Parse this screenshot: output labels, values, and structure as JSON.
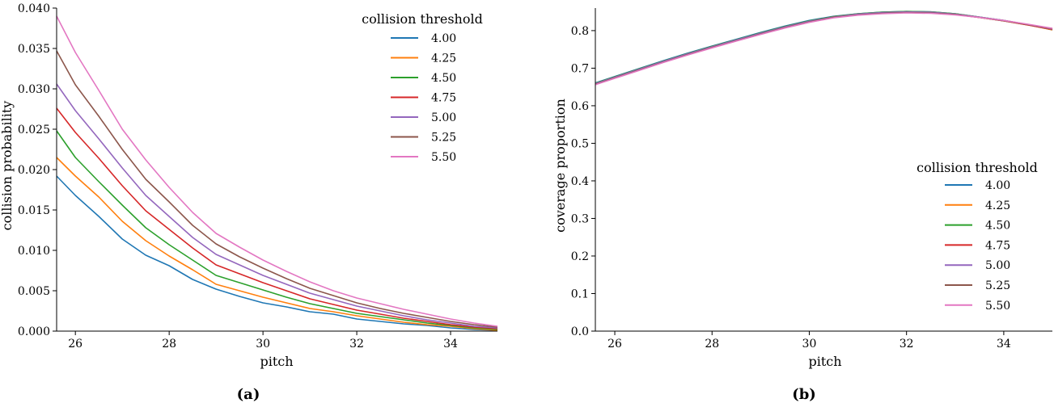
{
  "chart_data": [
    {
      "type": "line",
      "caption": "(a)",
      "xlabel": "pitch",
      "ylabel": "collision probability",
      "xlim": [
        25.6,
        35.0
      ],
      "ylim": [
        0.0,
        0.04
      ],
      "xticks": [
        "26",
        "28",
        "30",
        "32",
        "34"
      ],
      "yticks": [
        "0.000",
        "0.005",
        "0.010",
        "0.015",
        "0.020",
        "0.025",
        "0.030",
        "0.035",
        "0.040"
      ],
      "legend": {
        "title": "collision threshold",
        "position": "top-right"
      },
      "x": [
        25.6,
        26.0,
        26.5,
        27.0,
        27.5,
        28.0,
        28.5,
        29.0,
        29.5,
        30.0,
        30.5,
        31.0,
        31.5,
        32.0,
        32.5,
        33.0,
        33.5,
        34.0,
        34.5,
        35.0
      ],
      "series": [
        {
          "name": "4.00",
          "color": "#1f77b4",
          "values": [
            0.0192,
            0.0168,
            0.0142,
            0.0114,
            0.0094,
            0.0081,
            0.0064,
            0.0052,
            0.0043,
            0.0035,
            0.003,
            0.0024,
            0.0021,
            0.0015,
            0.0012,
            0.0009,
            0.0007,
            0.0004,
            0.0002,
            0.0001
          ]
        },
        {
          "name": "4.25",
          "color": "#ff7f0e",
          "values": [
            0.0215,
            0.0192,
            0.0166,
            0.0136,
            0.0112,
            0.0093,
            0.0076,
            0.0058,
            0.005,
            0.0042,
            0.0035,
            0.0028,
            0.0024,
            0.0019,
            0.0015,
            0.0011,
            0.0008,
            0.0006,
            0.0003,
            0.0001
          ]
        },
        {
          "name": "4.50",
          "color": "#2ca02c",
          "values": [
            0.0248,
            0.0215,
            0.0185,
            0.0156,
            0.0128,
            0.0107,
            0.0088,
            0.0069,
            0.006,
            0.0051,
            0.0042,
            0.0034,
            0.0028,
            0.0022,
            0.0018,
            0.0014,
            0.001,
            0.0007,
            0.0004,
            0.0002
          ]
        },
        {
          "name": "4.75",
          "color": "#d62728",
          "values": [
            0.0276,
            0.0246,
            0.0214,
            0.018,
            0.0149,
            0.0126,
            0.0103,
            0.0082,
            0.0071,
            0.006,
            0.005,
            0.004,
            0.0033,
            0.0026,
            0.0021,
            0.0016,
            0.0012,
            0.0008,
            0.0005,
            0.0003
          ]
        },
        {
          "name": "5.00",
          "color": "#9467bd",
          "values": [
            0.0306,
            0.0273,
            0.0238,
            0.0202,
            0.0168,
            0.0142,
            0.0116,
            0.0095,
            0.0082,
            0.0069,
            0.0058,
            0.0047,
            0.0039,
            0.0031,
            0.0025,
            0.0019,
            0.0014,
            0.001,
            0.0006,
            0.0004
          ]
        },
        {
          "name": "5.25",
          "color": "#8c564b",
          "values": [
            0.0347,
            0.0305,
            0.0266,
            0.0225,
            0.0188,
            0.016,
            0.0131,
            0.0108,
            0.0092,
            0.0078,
            0.0065,
            0.0053,
            0.0044,
            0.0035,
            0.0028,
            0.0022,
            0.0017,
            0.0012,
            0.0008,
            0.0005
          ]
        },
        {
          "name": "5.50",
          "color": "#e377c2",
          "values": [
            0.039,
            0.0345,
            0.0298,
            0.025,
            0.0212,
            0.0178,
            0.0147,
            0.0121,
            0.0104,
            0.0088,
            0.0074,
            0.0061,
            0.005,
            0.0041,
            0.0034,
            0.0027,
            0.0021,
            0.0015,
            0.001,
            0.0006
          ]
        }
      ]
    },
    {
      "type": "line",
      "caption": "(b)",
      "xlabel": "pitch",
      "ylabel": "coverage proportion",
      "xlim": [
        25.6,
        35.0
      ],
      "ylim": [
        0.0,
        0.86
      ],
      "xticks": [
        "26",
        "28",
        "30",
        "32",
        "34"
      ],
      "yticks": [
        "0.0",
        "0.1",
        "0.2",
        "0.3",
        "0.4",
        "0.5",
        "0.6",
        "0.7",
        "0.8"
      ],
      "legend": {
        "title": "collision threshold",
        "position": "center-right"
      },
      "x": [
        25.6,
        26.0,
        26.5,
        27.0,
        27.5,
        28.0,
        28.5,
        29.0,
        29.5,
        30.0,
        30.5,
        31.0,
        31.5,
        32.0,
        32.5,
        33.0,
        33.5,
        34.0,
        34.5,
        35.0
      ],
      "series": [
        {
          "name": "4.00",
          "color": "#1f77b4",
          "values": [
            0.661,
            0.678,
            0.699,
            0.72,
            0.74,
            0.759,
            0.777,
            0.795,
            0.812,
            0.827,
            0.838,
            0.845,
            0.849,
            0.851,
            0.85,
            0.845,
            0.836,
            0.827,
            0.816,
            0.802
          ]
        },
        {
          "name": "4.25",
          "color": "#ff7f0e",
          "values": [
            0.659,
            0.676,
            0.697,
            0.718,
            0.738,
            0.757,
            0.775,
            0.793,
            0.81,
            0.825,
            0.837,
            0.844,
            0.848,
            0.85,
            0.849,
            0.844,
            0.835,
            0.826,
            0.815,
            0.802
          ]
        },
        {
          "name": "4.50",
          "color": "#2ca02c",
          "values": [
            0.66,
            0.677,
            0.698,
            0.719,
            0.739,
            0.758,
            0.776,
            0.794,
            0.811,
            0.826,
            0.837,
            0.845,
            0.849,
            0.851,
            0.85,
            0.845,
            0.836,
            0.827,
            0.816,
            0.803
          ]
        },
        {
          "name": "4.75",
          "color": "#d62728",
          "values": [
            0.658,
            0.675,
            0.696,
            0.717,
            0.737,
            0.756,
            0.774,
            0.792,
            0.809,
            0.824,
            0.836,
            0.843,
            0.847,
            0.849,
            0.848,
            0.843,
            0.835,
            0.826,
            0.815,
            0.803
          ]
        },
        {
          "name": "5.00",
          "color": "#9467bd",
          "values": [
            0.659,
            0.676,
            0.697,
            0.718,
            0.738,
            0.757,
            0.775,
            0.793,
            0.81,
            0.825,
            0.836,
            0.844,
            0.848,
            0.85,
            0.849,
            0.844,
            0.836,
            0.827,
            0.816,
            0.804
          ]
        },
        {
          "name": "5.25",
          "color": "#8c564b",
          "values": [
            0.657,
            0.674,
            0.695,
            0.716,
            0.736,
            0.755,
            0.773,
            0.791,
            0.808,
            0.823,
            0.835,
            0.842,
            0.846,
            0.848,
            0.847,
            0.843,
            0.835,
            0.826,
            0.816,
            0.805
          ]
        },
        {
          "name": "5.50",
          "color": "#e377c2",
          "values": [
            0.656,
            0.673,
            0.694,
            0.715,
            0.735,
            0.754,
            0.772,
            0.79,
            0.807,
            0.822,
            0.834,
            0.841,
            0.845,
            0.847,
            0.846,
            0.842,
            0.835,
            0.827,
            0.817,
            0.806
          ]
        }
      ]
    }
  ]
}
